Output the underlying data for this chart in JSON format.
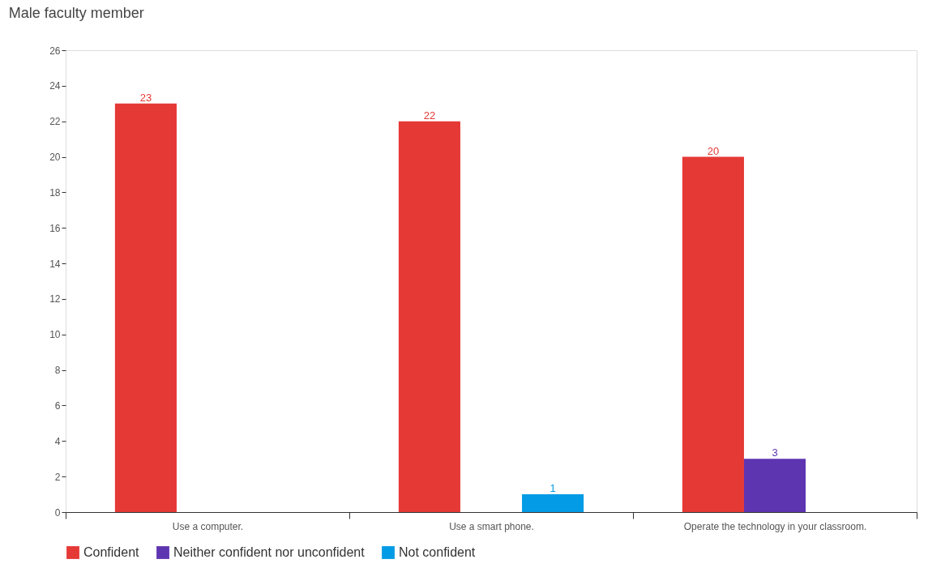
{
  "chart_data": {
    "type": "bar",
    "title": "Male faculty member",
    "categories": [
      "Use a computer.",
      "Use a smart phone.",
      "Operate the technology in your classroom."
    ],
    "series": [
      {
        "name": "Confident",
        "color": "#e53935",
        "values": [
          23,
          22,
          20
        ]
      },
      {
        "name": "Neither confident nor unconfident",
        "color": "#5e35b1",
        "values": [
          null,
          null,
          3
        ]
      },
      {
        "name": "Not confident",
        "color": "#039be5",
        "values": [
          null,
          1,
          null
        ]
      }
    ],
    "ylim": [
      0,
      26
    ],
    "yticks": [
      0,
      2,
      4,
      6,
      8,
      10,
      12,
      14,
      16,
      18,
      20,
      22,
      24,
      26
    ],
    "data_labels": true,
    "grid": false,
    "legend": "bottom"
  }
}
